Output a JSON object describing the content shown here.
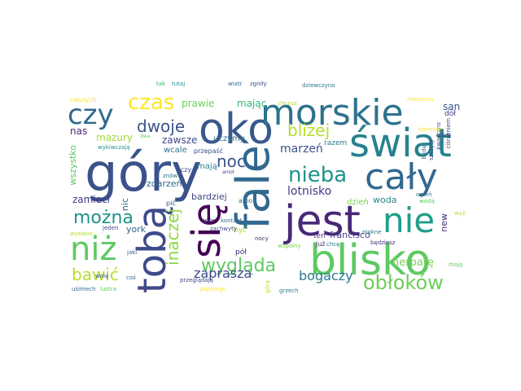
{
  "wordcloud": {
    "words": [
      {
        "text": "góry",
        "color": "#3b528b"
      },
      {
        "text": "fale",
        "color": "#31688e"
      },
      {
        "text": "jest",
        "color": "#482878"
      },
      {
        "text": "blisko",
        "color": "#5ec962"
      },
      {
        "text": "oko",
        "color": "#38598c"
      },
      {
        "text": "świat",
        "color": "#26828e"
      },
      {
        "text": "morskie",
        "color": "#2c728e"
      },
      {
        "text": "cały",
        "color": "#31688e"
      },
      {
        "text": "tobą",
        "color": "#3e4a89"
      },
      {
        "text": "się",
        "color": "#440154"
      },
      {
        "text": "nie",
        "color": "#1f9e89"
      },
      {
        "text": "niż",
        "color": "#5ec962"
      },
      {
        "text": "nieba",
        "color": "#21918c"
      },
      {
        "text": "czy",
        "color": "#31688e"
      },
      {
        "text": "obłoków",
        "color": "#6ece58"
      },
      {
        "text": "czas",
        "color": "#fde725"
      },
      {
        "text": "wygląda",
        "color": "#5ec962"
      },
      {
        "text": "można",
        "color": "#21918c"
      },
      {
        "text": "dwoje",
        "color": "#3b528b"
      },
      {
        "text": "bliżej",
        "color": "#b5de2b"
      },
      {
        "text": "noc",
        "color": "#3b528b"
      },
      {
        "text": "inaczej",
        "color": "#8fd744"
      },
      {
        "text": "bawić",
        "color": "#b5de2b"
      },
      {
        "text": "bogaczy",
        "color": "#2a788e"
      },
      {
        "text": "zaprasza",
        "color": "#3e4a89"
      },
      {
        "text": "lotnisko",
        "color": "#443983"
      },
      {
        "text": "marzeń",
        "color": "#3b528b"
      },
      {
        "text": "herbatę",
        "color": "#7ad151"
      },
      {
        "text": "prawie",
        "color": "#6ece58"
      },
      {
        "text": "mając",
        "color": "#35b779"
      },
      {
        "text": "san",
        "color": "#3b528b"
      },
      {
        "text": "nas",
        "color": "#482878"
      },
      {
        "text": "mazury",
        "color": "#a0da39"
      },
      {
        "text": "zawsze",
        "color": "#3e4a89"
      },
      {
        "text": "uczymy",
        "color": "#2c728e"
      },
      {
        "text": "zamieci",
        "color": "#443983"
      },
      {
        "text": "francisco",
        "color": "#414487"
      },
      {
        "text": "woda",
        "color": "#26828e"
      },
      {
        "text": "york",
        "color": "#31688e"
      },
      {
        "text": "bardziej",
        "color": "#3e4a89"
      },
      {
        "text": "zdarzeń",
        "color": "#31688e"
      },
      {
        "text": "new",
        "color": "#46327e"
      },
      {
        "text": "nic",
        "color": "#31688e"
      },
      {
        "text": "wszystko",
        "color": "#5ec962"
      },
      {
        "text": "mają",
        "color": "#26828e"
      },
      {
        "text": "wcale",
        "color": "#2c728e"
      },
      {
        "text": "dzień",
        "color": "#7ad151"
      },
      {
        "text": "ten",
        "color": "#46327e"
      },
      {
        "text": "razem",
        "color": "#2a788e"
      },
      {
        "text": "pół",
        "color": "#482878"
      },
      {
        "text": "być",
        "color": "#b5de2b"
      },
      {
        "text": "oczy",
        "color": "#3e4a89"
      },
      {
        "text": "albo",
        "color": "#2c728e"
      },
      {
        "text": "już",
        "color": "#482878"
      },
      {
        "text": "kochaj",
        "color": "#31688e"
      },
      {
        "text": "jaki",
        "color": "#31688e"
      },
      {
        "text": "naszych",
        "color": "#fde725"
      },
      {
        "text": "wykiwczają",
        "color": "#21918c"
      },
      {
        "text": "przepaść",
        "color": "#3e4a89"
      },
      {
        "text": "dziewczyno",
        "color": "#2a788e"
      },
      {
        "text": "chcesz",
        "color": "#b5de2b"
      },
      {
        "text": "marszczy",
        "color": "#fde725"
      },
      {
        "text": "dół",
        "color": "#443983"
      },
      {
        "text": "zgniły",
        "color": "#3e4a89"
      },
      {
        "text": "tutaj",
        "color": "#21918c"
      },
      {
        "text": "tak",
        "color": "#35b779"
      },
      {
        "text": "wiatr",
        "color": "#31688e"
      },
      {
        "text": "znów",
        "color": "#2c728e"
      },
      {
        "text": "pić",
        "color": "#3b528b"
      },
      {
        "text": "spór",
        "color": "#3e4a89"
      },
      {
        "text": "kontakt",
        "color": "#31688e"
      },
      {
        "text": "zachwyty",
        "color": "#3e4a89"
      },
      {
        "text": "nocy",
        "color": "#482878"
      },
      {
        "text": "wspólny",
        "color": "#7ad151"
      },
      {
        "text": "chcę",
        "color": "#2a788e"
      },
      {
        "text": "piękne",
        "color": "#2c728e"
      },
      {
        "text": "będziesz",
        "color": "#46327e"
      },
      {
        "text": "wodą",
        "color": "#5ec962"
      },
      {
        "text": "ogień",
        "color": "#2c728e"
      },
      {
        "text": "szczyty",
        "color": "#3e4a89"
      },
      {
        "text": "będę",
        "color": "#31688e"
      },
      {
        "text": "kwadrans",
        "color": "#3b528b"
      },
      {
        "text": "ciśnieniem",
        "color": "#414487"
      },
      {
        "text": "mam",
        "color": "#3e4a89"
      },
      {
        "text": "bezmiar",
        "color": "#fde725"
      },
      {
        "text": "jeden",
        "color": "#3e4a89"
      },
      {
        "text": "wysokie",
        "color": "#b5de2b"
      },
      {
        "text": "wolę",
        "color": "#3b528b"
      },
      {
        "text": "coś",
        "color": "#31688e"
      },
      {
        "text": "uśmiech",
        "color": "#2c728e"
      },
      {
        "text": "lustra",
        "color": "#5ec962"
      },
      {
        "text": "przeglądają",
        "color": "#3e4a89"
      },
      {
        "text": "góra",
        "color": "#b5de2b"
      },
      {
        "text": "grzech",
        "color": "#2a788e"
      },
      {
        "text": "pięknego",
        "color": "#fde725"
      },
      {
        "text": "wyż",
        "color": "#b5de2b"
      },
      {
        "text": "moją",
        "color": "#5ec962"
      },
      {
        "text": "dwa",
        "color": "#5ec962"
      },
      {
        "text": "anioł",
        "color": "#3e4a89"
      }
    ]
  }
}
